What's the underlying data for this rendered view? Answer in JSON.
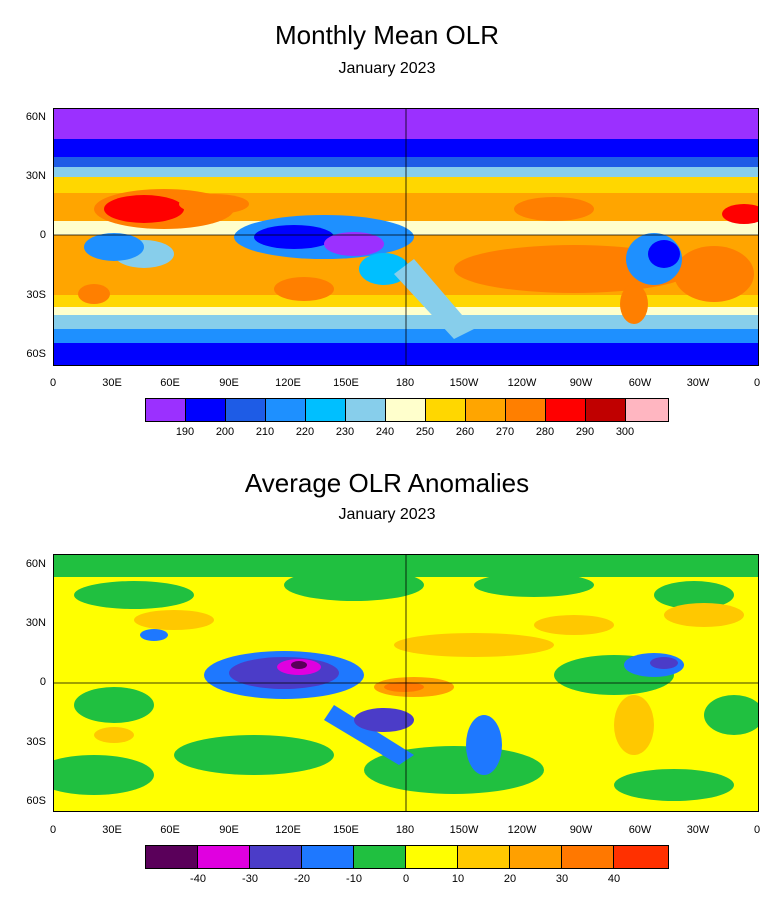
{
  "panel1": {
    "title": "Monthly Mean OLR",
    "subtitle": "January  2023",
    "colorbar": {
      "colors": [
        "#9b30ff",
        "#0000ff",
        "#1e5ce6",
        "#1e90ff",
        "#00bfff",
        "#87ceeb",
        "#ffffcc",
        "#ffd700",
        "#ffa500",
        "#ff7f00",
        "#ff0000",
        "#c00000",
        "#ffb6c1"
      ],
      "labels": [
        "190",
        "200",
        "210",
        "220",
        "230",
        "240",
        "250",
        "260",
        "270",
        "280",
        "290",
        "300"
      ]
    }
  },
  "panel2": {
    "title": "Average OLR Anomalies",
    "subtitle": "January 2023",
    "colorbar": {
      "colors": [
        "#5a005a",
        "#e000e0",
        "#4b3cc8",
        "#1e78ff",
        "#20c040",
        "#ffff00",
        "#ffc800",
        "#ffa000",
        "#ff7800",
        "#ff3000"
      ],
      "labels": [
        "-40",
        "-30",
        "-20",
        "-10",
        "0",
        "10",
        "20",
        "30",
        "40"
      ]
    }
  },
  "axes": {
    "lat_labels": [
      "60N",
      "30N",
      "0",
      "30S",
      "60S"
    ],
    "lon_labels": [
      "0",
      "30E",
      "60E",
      "90E",
      "120E",
      "150E",
      "180",
      "150W",
      "120W",
      "90W",
      "60W",
      "30W",
      "0"
    ]
  }
}
